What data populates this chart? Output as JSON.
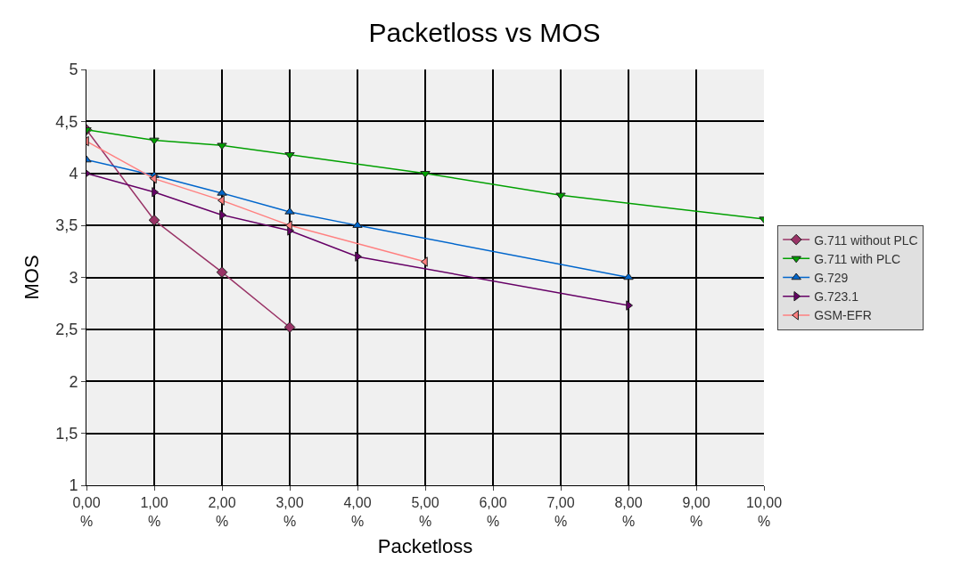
{
  "chart_data": {
    "type": "line",
    "title": "Packetloss vs MOS",
    "xlabel": "Packetloss",
    "ylabel": "MOS",
    "xlim": [
      0,
      10
    ],
    "xticks": [
      {
        "value": 0,
        "label": "0,00\n%"
      },
      {
        "value": 1,
        "label": "1,00\n%"
      },
      {
        "value": 2,
        "label": "2,00\n%"
      },
      {
        "value": 3,
        "label": "3,00\n%"
      },
      {
        "value": 4,
        "label": "4,00\n%"
      },
      {
        "value": 5,
        "label": "5,00\n%"
      },
      {
        "value": 6,
        "label": "6,00\n%"
      },
      {
        "value": 7,
        "label": "7,00\n%"
      },
      {
        "value": 8,
        "label": "8,00\n%"
      },
      {
        "value": 9,
        "label": "9,00\n%"
      },
      {
        "value": 10,
        "label": "10,00\n%"
      }
    ],
    "ylim": [
      1,
      5
    ],
    "yticks": [
      1,
      {
        "value": 1.5,
        "label": "1,5"
      },
      2,
      {
        "value": 2.5,
        "label": "2,5"
      },
      3,
      {
        "value": 3.5,
        "label": "3,5"
      },
      4,
      {
        "value": 4.5,
        "label": "4,5"
      },
      5
    ],
    "grid": true,
    "legend": "right",
    "line_style": "solid",
    "series": [
      {
        "name": "G.711 without PLC",
        "color": "#993366",
        "marker": "diamond",
        "x": [
          0,
          1,
          2,
          3
        ],
        "values": [
          4.42,
          3.55,
          3.05,
          2.52
        ]
      },
      {
        "name": "G.711 with PLC",
        "color": "#00a000",
        "marker": "triangle-down",
        "x": [
          0,
          1,
          2,
          3,
          5,
          7,
          10
        ],
        "values": [
          4.42,
          4.32,
          4.27,
          4.18,
          4.0,
          3.79,
          3.56
        ]
      },
      {
        "name": "G.729",
        "color": "#0066cc",
        "marker": "triangle-up",
        "x": [
          0,
          1,
          2,
          3,
          4,
          8
        ],
        "values": [
          4.13,
          3.98,
          3.81,
          3.63,
          3.5,
          3.0
        ]
      },
      {
        "name": "G.723.1",
        "color": "#660066",
        "marker": "triangle-right",
        "x": [
          0,
          1,
          2,
          3,
          4,
          8
        ],
        "values": [
          4.0,
          3.82,
          3.6,
          3.45,
          3.2,
          2.73
        ]
      },
      {
        "name": "GSM-EFR",
        "color": "#ff8080",
        "marker": "triangle-left",
        "x": [
          0,
          1,
          2,
          3,
          5
        ],
        "values": [
          4.31,
          3.95,
          3.74,
          3.5,
          3.15
        ]
      }
    ]
  }
}
